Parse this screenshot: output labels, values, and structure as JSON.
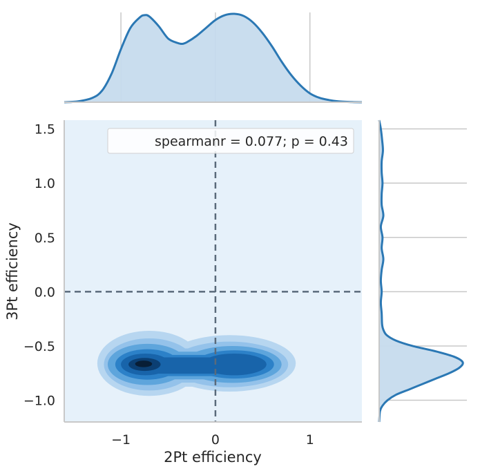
{
  "chart_data": {
    "type": "kde-jointplot",
    "xlabel": "2Pt efficiency",
    "ylabel": "3Pt efficiency",
    "xlim": [
      -1.6,
      1.55
    ],
    "ylim": [
      -1.2,
      1.58
    ],
    "x_ticks": [
      -1,
      0,
      1
    ],
    "x_tick_labels": [
      "−1",
      "0",
      "1"
    ],
    "y_ticks": [
      -1.0,
      -0.5,
      0.0,
      0.5,
      1.0,
      1.5
    ],
    "y_tick_labels": [
      "−1.0",
      "−0.5",
      "0.0",
      "0.5",
      "1.0",
      "1.5"
    ],
    "grid": true,
    "reference_lines": {
      "x": 0,
      "y": 0,
      "style": "dashed",
      "color": "#5a6a7a"
    },
    "annotation": "spearmanr = 0.077; p = 0.43",
    "legend_placement": "top-right",
    "colors": {
      "joint_background": "#e6f1fa",
      "marginal_line": "#2b78b4",
      "marginal_fill": "#c6dbed",
      "grid": "#c8c8c8",
      "spine": "#c8c8c8",
      "contour_levels": [
        "#b7d6f0",
        "#94c2ea",
        "#5ea5dc",
        "#2c81c8",
        "#1864aa",
        "#0b3f73",
        "#081e36"
      ]
    },
    "marginal_x": {
      "x": [
        -1.6,
        -1.45,
        -1.3,
        -1.2,
        -1.1,
        -1.0,
        -0.9,
        -0.8,
        -0.75,
        -0.7,
        -0.6,
        -0.5,
        -0.4,
        -0.35,
        -0.3,
        -0.2,
        -0.1,
        0.0,
        0.1,
        0.2,
        0.3,
        0.4,
        0.5,
        0.6,
        0.7,
        0.8,
        0.9,
        1.0,
        1.1,
        1.2,
        1.3,
        1.45,
        1.55
      ],
      "density": [
        0.0,
        0.01,
        0.05,
        0.13,
        0.32,
        0.6,
        0.84,
        0.96,
        0.985,
        0.97,
        0.86,
        0.72,
        0.67,
        0.66,
        0.68,
        0.75,
        0.84,
        0.93,
        0.985,
        1.0,
        0.975,
        0.9,
        0.78,
        0.63,
        0.46,
        0.31,
        0.19,
        0.1,
        0.05,
        0.025,
        0.01,
        0.002,
        0.0
      ]
    },
    "marginal_y": {
      "y": [
        -1.2,
        -1.1,
        -1.05,
        -1.0,
        -0.95,
        -0.9,
        -0.85,
        -0.8,
        -0.75,
        -0.7,
        -0.65,
        -0.6,
        -0.55,
        -0.5,
        -0.45,
        -0.4,
        -0.35,
        -0.3,
        -0.2,
        -0.1,
        0.0,
        0.1,
        0.2,
        0.3,
        0.4,
        0.5,
        0.6,
        0.7,
        0.8,
        0.9,
        1.0,
        1.1,
        1.2,
        1.3,
        1.4,
        1.5,
        1.58
      ],
      "density": [
        0.0,
        0.01,
        0.04,
        0.1,
        0.2,
        0.36,
        0.52,
        0.68,
        0.84,
        0.96,
        1.0,
        0.9,
        0.68,
        0.4,
        0.2,
        0.09,
        0.05,
        0.035,
        0.03,
        0.02,
        0.03,
        0.02,
        0.03,
        0.05,
        0.03,
        0.04,
        0.02,
        0.05,
        0.03,
        0.03,
        0.04,
        0.03,
        0.03,
        0.045,
        0.035,
        0.02,
        0.0
      ]
    },
    "kde_contours": [
      {
        "level": 1,
        "center": [
          -0.05,
          -0.68
        ],
        "rx": [
          1.38,
          1.3
        ],
        "ry": [
          0.3,
          0.26
        ],
        "lobes": [
          [
            -0.7,
            -0.66,
            0.55,
            0.3
          ],
          [
            0.15,
            -0.66,
            0.7,
            0.26
          ]
        ]
      },
      {
        "level": 2,
        "center": [
          -0.05,
          -0.68
        ],
        "rx": [
          1.2,
          1.15
        ],
        "ry": [
          0.25,
          0.22
        ],
        "lobes": [
          [
            -0.7,
            -0.67,
            0.48,
            0.24
          ],
          [
            0.15,
            -0.67,
            0.62,
            0.21
          ]
        ]
      },
      {
        "level": 3,
        "center": [
          -0.05,
          -0.68
        ],
        "rx": [
          1.0,
          0.98
        ],
        "ry": [
          0.2,
          0.18
        ],
        "lobes": [
          [
            -0.72,
            -0.67,
            0.42,
            0.19
          ],
          [
            0.18,
            -0.67,
            0.52,
            0.17
          ]
        ]
      },
      {
        "level": 4,
        "center": [
          -0.1,
          -0.68
        ],
        "rx": [
          0.82,
          0.8
        ],
        "ry": [
          0.15,
          0.14
        ],
        "lobes": [
          [
            -0.72,
            -0.67,
            0.34,
            0.14
          ],
          [
            0.2,
            -0.67,
            0.42,
            0.13
          ]
        ]
      },
      {
        "level": 5,
        "center": [
          -0.3,
          -0.68
        ],
        "rx": [
          0.65,
          0.6
        ],
        "ry": [
          0.1,
          0.1
        ],
        "lobes": [
          [
            -0.74,
            -0.67,
            0.26,
            0.1
          ],
          [
            0.2,
            -0.67,
            0.34,
            0.1
          ]
        ]
      },
      {
        "level": 6,
        "center": [
          -0.75,
          -0.67
        ],
        "rx": [
          0.17,
          0.14
        ],
        "ry": [
          0.06,
          0.05
        ],
        "lobes": [
          [
            -0.75,
            -0.67,
            0.17,
            0.06
          ]
        ]
      },
      {
        "level": 7,
        "center": [
          -0.76,
          -0.665
        ],
        "rx": [
          0.09,
          0.07
        ],
        "ry": [
          0.03,
          0.03
        ],
        "lobes": [
          [
            -0.76,
            -0.665,
            0.09,
            0.03
          ]
        ]
      }
    ]
  }
}
